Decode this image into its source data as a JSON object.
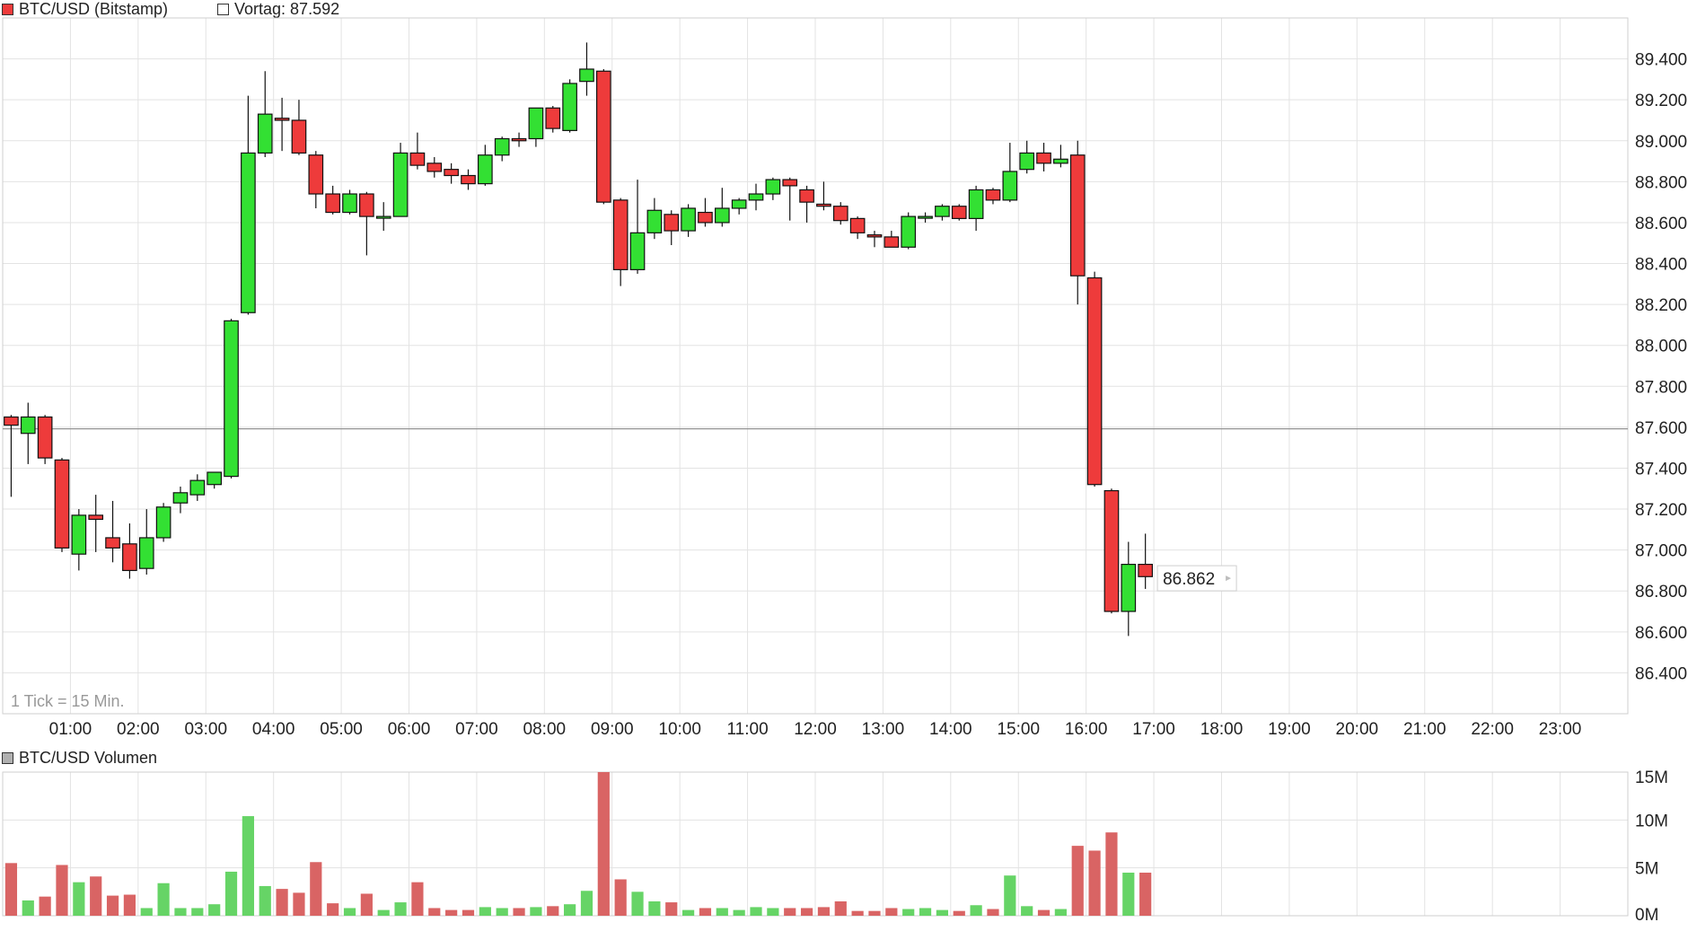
{
  "legend": {
    "main": "BTC/USD (Bitstamp)",
    "main_color": "#ee3b3b",
    "previous_close": "Vortag: 87.592",
    "volume": "BTC/USD Volumen",
    "volume_color": "#b0b0b0"
  },
  "chart_data": [
    {
      "type": "candlestick",
      "title": "BTC/USD (Bitstamp)",
      "interval_note": "1 Tick = 15 Min.",
      "x_tick_labels": [
        "01:00",
        "02:00",
        "03:00",
        "04:00",
        "05:00",
        "06:00",
        "07:00",
        "08:00",
        "09:00",
        "10:00",
        "11:00",
        "12:00",
        "13:00",
        "14:00",
        "15:00",
        "16:00",
        "17:00",
        "18:00",
        "19:00",
        "20:00",
        "21:00",
        "22:00",
        "23:00"
      ],
      "x_start": "00:00",
      "x_end": "24:00",
      "y_tick_labels": [
        "86.400",
        "86.600",
        "86.800",
        "87.000",
        "87.200",
        "87.400",
        "87.600",
        "87.800",
        "88.000",
        "88.200",
        "88.400",
        "88.600",
        "88.800",
        "89.000",
        "89.200",
        "89.400"
      ],
      "ylim": [
        86200,
        89600
      ],
      "previous_close": 87592,
      "last_price": 86862,
      "last_price_label": "86.862",
      "up_color": "#33e033",
      "down_color": "#ee3b3b",
      "grid": true,
      "candles": [
        {
          "t": "00:00",
          "o": 87650,
          "h": 87660,
          "l": 87260,
          "c": 87610
        },
        {
          "t": "00:15",
          "o": 87570,
          "h": 87720,
          "l": 87420,
          "c": 87650
        },
        {
          "t": "00:30",
          "o": 87650,
          "h": 87660,
          "l": 87420,
          "c": 87450
        },
        {
          "t": "00:45",
          "o": 87440,
          "h": 87450,
          "l": 86990,
          "c": 87010
        },
        {
          "t": "01:00",
          "o": 86980,
          "h": 87200,
          "l": 86900,
          "c": 87170
        },
        {
          "t": "01:15",
          "o": 87170,
          "h": 87270,
          "l": 86990,
          "c": 87150
        },
        {
          "t": "01:30",
          "o": 87060,
          "h": 87240,
          "l": 86940,
          "c": 87010
        },
        {
          "t": "01:45",
          "o": 87030,
          "h": 87130,
          "l": 86860,
          "c": 86900
        },
        {
          "t": "02:00",
          "o": 86910,
          "h": 87200,
          "l": 86880,
          "c": 87060
        },
        {
          "t": "02:15",
          "o": 87060,
          "h": 87230,
          "l": 87040,
          "c": 87210
        },
        {
          "t": "02:30",
          "o": 87230,
          "h": 87310,
          "l": 87180,
          "c": 87280
        },
        {
          "t": "02:45",
          "o": 87270,
          "h": 87370,
          "l": 87240,
          "c": 87340
        },
        {
          "t": "03:00",
          "o": 87320,
          "h": 87380,
          "l": 87300,
          "c": 87380
        },
        {
          "t": "03:15",
          "o": 87360,
          "h": 88130,
          "l": 87350,
          "c": 88120
        },
        {
          "t": "03:30",
          "o": 88160,
          "h": 89220,
          "l": 88150,
          "c": 88940
        },
        {
          "t": "03:45",
          "o": 88940,
          "h": 89340,
          "l": 88920,
          "c": 89130
        },
        {
          "t": "04:00",
          "o": 89110,
          "h": 89210,
          "l": 88950,
          "c": 89100
        },
        {
          "t": "04:15",
          "o": 89100,
          "h": 89200,
          "l": 88930,
          "c": 88940
        },
        {
          "t": "04:30",
          "o": 88930,
          "h": 88950,
          "l": 88670,
          "c": 88740
        },
        {
          "t": "04:45",
          "o": 88740,
          "h": 88780,
          "l": 88640,
          "c": 88650
        },
        {
          "t": "05:00",
          "o": 88650,
          "h": 88760,
          "l": 88640,
          "c": 88740
        },
        {
          "t": "05:15",
          "o": 88740,
          "h": 88750,
          "l": 88440,
          "c": 88630
        },
        {
          "t": "05:30",
          "o": 88630,
          "h": 88700,
          "l": 88560,
          "c": 88630
        },
        {
          "t": "05:45",
          "o": 88630,
          "h": 88990,
          "l": 88630,
          "c": 88940
        },
        {
          "t": "06:00",
          "o": 88940,
          "h": 89040,
          "l": 88860,
          "c": 88880
        },
        {
          "t": "06:15",
          "o": 88890,
          "h": 88920,
          "l": 88820,
          "c": 88850
        },
        {
          "t": "06:30",
          "o": 88860,
          "h": 88890,
          "l": 88790,
          "c": 88830
        },
        {
          "t": "06:45",
          "o": 88830,
          "h": 88860,
          "l": 88760,
          "c": 88790
        },
        {
          "t": "07:00",
          "o": 88790,
          "h": 88980,
          "l": 88780,
          "c": 88930
        },
        {
          "t": "07:15",
          "o": 88930,
          "h": 89020,
          "l": 88900,
          "c": 89010
        },
        {
          "t": "07:30",
          "o": 89010,
          "h": 89040,
          "l": 88970,
          "c": 89000
        },
        {
          "t": "07:45",
          "o": 89010,
          "h": 89160,
          "l": 88970,
          "c": 89160
        },
        {
          "t": "08:00",
          "o": 89160,
          "h": 89170,
          "l": 89040,
          "c": 89060
        },
        {
          "t": "08:15",
          "o": 89050,
          "h": 89300,
          "l": 89040,
          "c": 89280
        },
        {
          "t": "08:30",
          "o": 89290,
          "h": 89480,
          "l": 89220,
          "c": 89350
        },
        {
          "t": "08:45",
          "o": 89340,
          "h": 89350,
          "l": 88690,
          "c": 88700
        },
        {
          "t": "09:00",
          "o": 88710,
          "h": 88720,
          "l": 88290,
          "c": 88370
        },
        {
          "t": "09:15",
          "o": 88370,
          "h": 88810,
          "l": 88350,
          "c": 88550
        },
        {
          "t": "09:30",
          "o": 88550,
          "h": 88720,
          "l": 88520,
          "c": 88660
        },
        {
          "t": "09:45",
          "o": 88640,
          "h": 88660,
          "l": 88490,
          "c": 88560
        },
        {
          "t": "10:00",
          "o": 88560,
          "h": 88690,
          "l": 88530,
          "c": 88670
        },
        {
          "t": "10:15",
          "o": 88650,
          "h": 88720,
          "l": 88580,
          "c": 88600
        },
        {
          "t": "10:30",
          "o": 88600,
          "h": 88770,
          "l": 88580,
          "c": 88670
        },
        {
          "t": "10:45",
          "o": 88670,
          "h": 88720,
          "l": 88640,
          "c": 88710
        },
        {
          "t": "11:00",
          "o": 88710,
          "h": 88790,
          "l": 88660,
          "c": 88740
        },
        {
          "t": "11:15",
          "o": 88740,
          "h": 88820,
          "l": 88710,
          "c": 88810
        },
        {
          "t": "11:30",
          "o": 88810,
          "h": 88820,
          "l": 88610,
          "c": 88780
        },
        {
          "t": "11:45",
          "o": 88760,
          "h": 88780,
          "l": 88600,
          "c": 88700
        },
        {
          "t": "12:00",
          "o": 88690,
          "h": 88800,
          "l": 88660,
          "c": 88680
        },
        {
          "t": "12:15",
          "o": 88680,
          "h": 88700,
          "l": 88590,
          "c": 88610
        },
        {
          "t": "12:30",
          "o": 88620,
          "h": 88630,
          "l": 88520,
          "c": 88550
        },
        {
          "t": "12:45",
          "o": 88540,
          "h": 88560,
          "l": 88480,
          "c": 88530
        },
        {
          "t": "13:00",
          "o": 88530,
          "h": 88560,
          "l": 88480,
          "c": 88480
        },
        {
          "t": "13:15",
          "o": 88480,
          "h": 88650,
          "l": 88470,
          "c": 88630
        },
        {
          "t": "13:30",
          "o": 88630,
          "h": 88650,
          "l": 88600,
          "c": 88630
        },
        {
          "t": "13:45",
          "o": 88630,
          "h": 88690,
          "l": 88610,
          "c": 88680
        },
        {
          "t": "14:00",
          "o": 88680,
          "h": 88690,
          "l": 88610,
          "c": 88620
        },
        {
          "t": "14:15",
          "o": 88620,
          "h": 88780,
          "l": 88560,
          "c": 88760
        },
        {
          "t": "14:30",
          "o": 88760,
          "h": 88770,
          "l": 88690,
          "c": 88710
        },
        {
          "t": "14:45",
          "o": 88710,
          "h": 88990,
          "l": 88700,
          "c": 88850
        },
        {
          "t": "15:00",
          "o": 88860,
          "h": 89000,
          "l": 88840,
          "c": 88940
        },
        {
          "t": "15:15",
          "o": 88940,
          "h": 88990,
          "l": 88850,
          "c": 88890
        },
        {
          "t": "15:30",
          "o": 88890,
          "h": 88980,
          "l": 88870,
          "c": 88910
        },
        {
          "t": "15:45",
          "o": 88930,
          "h": 89000,
          "l": 88200,
          "c": 88340
        },
        {
          "t": "16:00",
          "o": 88330,
          "h": 88360,
          "l": 87310,
          "c": 87320
        },
        {
          "t": "16:15",
          "o": 87290,
          "h": 87300,
          "l": 86690,
          "c": 86700
        },
        {
          "t": "16:30",
          "o": 86700,
          "h": 87040,
          "l": 86580,
          "c": 86930
        },
        {
          "t": "16:45",
          "o": 86930,
          "h": 87080,
          "l": 86810,
          "c": 86870
        }
      ]
    },
    {
      "type": "bar",
      "title": "BTC/USD Volumen",
      "y_tick_labels": [
        "0M",
        "5M",
        "10M",
        "15M"
      ],
      "ylim": [
        0,
        15
      ],
      "unit": "M",
      "up_color": "#66d466",
      "down_color": "#d96464",
      "values": [
        5.5,
        1.6,
        2.0,
        5.3,
        3.5,
        4.1,
        2.1,
        2.2,
        0.8,
        3.4,
        0.8,
        0.8,
        1.2,
        4.6,
        10.4,
        3.1,
        2.8,
        2.4,
        5.6,
        1.3,
        0.8,
        2.3,
        0.6,
        1.4,
        3.5,
        0.8,
        0.6,
        0.6,
        0.9,
        0.8,
        0.8,
        0.9,
        1.0,
        1.2,
        2.6,
        15.0,
        3.8,
        2.5,
        1.5,
        1.4,
        0.6,
        0.8,
        0.8,
        0.6,
        0.9,
        0.8,
        0.8,
        0.8,
        0.9,
        1.5,
        0.5,
        0.5,
        0.8,
        0.7,
        0.8,
        0.6,
        0.5,
        1.1,
        0.7,
        4.2,
        1.0,
        0.6,
        0.7,
        7.3,
        6.8,
        8.7,
        4.5,
        4.5
      ]
    }
  ]
}
